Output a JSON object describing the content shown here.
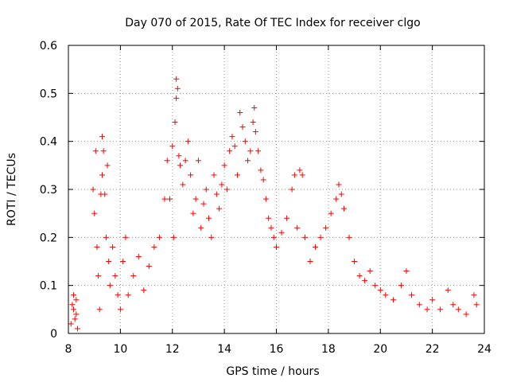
{
  "chart_data": {
    "type": "scatter",
    "title": "Day 070 of 2015, Rate Of TEC Index for receiver clgo",
    "xlabel": "GPS time / hours",
    "ylabel": "ROTI / TECUs",
    "xlim": [
      8,
      24
    ],
    "ylim": [
      0,
      0.6
    ],
    "xticks": [
      8,
      10,
      12,
      14,
      16,
      18,
      20,
      22,
      24
    ],
    "yticks": [
      0,
      0.1,
      0.2,
      0.3,
      0.4,
      0.5,
      0.6
    ],
    "xtick_labels": [
      "8",
      "10",
      "12",
      "14",
      "16",
      "18",
      "20",
      "22",
      "24"
    ],
    "ytick_labels": [
      "0",
      "0.1",
      "0.2",
      "0.3",
      "0.4",
      "0.5",
      "0.6"
    ],
    "grid": true,
    "marker": "+",
    "color": "#ff0000",
    "series": [
      {
        "name": "ROTI",
        "points": [
          [
            8.1,
            0.02
          ],
          [
            8.15,
            0.06
          ],
          [
            8.2,
            0.05
          ],
          [
            8.25,
            0.03
          ],
          [
            8.3,
            0.07
          ],
          [
            8.35,
            0.01
          ],
          [
            8.2,
            0.08
          ],
          [
            8.3,
            0.04
          ],
          [
            8.95,
            0.3
          ],
          [
            9.0,
            0.25
          ],
          [
            9.05,
            0.38
          ],
          [
            9.1,
            0.18
          ],
          [
            9.15,
            0.12
          ],
          [
            9.2,
            0.05
          ],
          [
            9.25,
            0.29
          ],
          [
            9.3,
            0.33
          ],
          [
            9.3,
            0.41
          ],
          [
            9.35,
            0.38
          ],
          [
            9.4,
            0.29
          ],
          [
            9.45,
            0.2
          ],
          [
            9.5,
            0.35
          ],
          [
            9.55,
            0.15
          ],
          [
            9.6,
            0.1
          ],
          [
            9.7,
            0.18
          ],
          [
            9.8,
            0.12
          ],
          [
            9.9,
            0.08
          ],
          [
            10.0,
            0.05
          ],
          [
            10.1,
            0.15
          ],
          [
            10.2,
            0.2
          ],
          [
            10.3,
            0.08
          ],
          [
            10.5,
            0.12
          ],
          [
            10.7,
            0.16
          ],
          [
            10.9,
            0.09
          ],
          [
            11.1,
            0.14
          ],
          [
            11.3,
            0.18
          ],
          [
            11.5,
            0.2
          ],
          [
            11.7,
            0.28
          ],
          [
            11.8,
            0.36
          ],
          [
            11.9,
            0.28
          ],
          [
            12.0,
            0.39
          ],
          [
            12.05,
            0.2
          ],
          [
            12.1,
            0.44
          ],
          [
            12.15,
            0.49
          ],
          [
            12.15,
            0.53
          ],
          [
            12.2,
            0.51
          ],
          [
            12.25,
            0.37
          ],
          [
            12.3,
            0.35
          ],
          [
            12.4,
            0.31
          ],
          [
            12.5,
            0.36
          ],
          [
            12.6,
            0.4
          ],
          [
            12.7,
            0.33
          ],
          [
            12.8,
            0.25
          ],
          [
            12.9,
            0.28
          ],
          [
            13.0,
            0.36
          ],
          [
            13.1,
            0.22
          ],
          [
            13.2,
            0.27
          ],
          [
            13.3,
            0.3
          ],
          [
            13.4,
            0.24
          ],
          [
            13.5,
            0.2
          ],
          [
            13.6,
            0.33
          ],
          [
            13.7,
            0.29
          ],
          [
            13.8,
            0.26
          ],
          [
            13.9,
            0.31
          ],
          [
            14.0,
            0.35
          ],
          [
            14.1,
            0.3
          ],
          [
            14.2,
            0.38
          ],
          [
            14.3,
            0.41
          ],
          [
            14.4,
            0.39
          ],
          [
            14.5,
            0.33
          ],
          [
            14.6,
            0.46
          ],
          [
            14.7,
            0.43
          ],
          [
            14.8,
            0.4
          ],
          [
            14.9,
            0.36
          ],
          [
            15.0,
            0.38
          ],
          [
            15.1,
            0.44
          ],
          [
            15.15,
            0.47
          ],
          [
            15.2,
            0.42
          ],
          [
            15.3,
            0.38
          ],
          [
            15.4,
            0.34
          ],
          [
            15.5,
            0.32
          ],
          [
            15.6,
            0.28
          ],
          [
            15.7,
            0.24
          ],
          [
            15.8,
            0.22
          ],
          [
            15.9,
            0.2
          ],
          [
            16.0,
            0.18
          ],
          [
            16.2,
            0.21
          ],
          [
            16.4,
            0.24
          ],
          [
            16.6,
            0.3
          ],
          [
            16.7,
            0.33
          ],
          [
            16.8,
            0.22
          ],
          [
            16.9,
            0.34
          ],
          [
            17.0,
            0.33
          ],
          [
            17.1,
            0.2
          ],
          [
            17.3,
            0.15
          ],
          [
            17.5,
            0.18
          ],
          [
            17.7,
            0.2
          ],
          [
            17.9,
            0.22
          ],
          [
            18.1,
            0.25
          ],
          [
            18.3,
            0.28
          ],
          [
            18.4,
            0.31
          ],
          [
            18.5,
            0.29
          ],
          [
            18.6,
            0.26
          ],
          [
            18.8,
            0.2
          ],
          [
            19.0,
            0.15
          ],
          [
            19.2,
            0.12
          ],
          [
            19.4,
            0.11
          ],
          [
            19.6,
            0.13
          ],
          [
            19.8,
            0.1
          ],
          [
            20.0,
            0.09
          ],
          [
            20.2,
            0.08
          ],
          [
            20.5,
            0.07
          ],
          [
            20.8,
            0.1
          ],
          [
            21.0,
            0.13
          ],
          [
            21.2,
            0.08
          ],
          [
            21.5,
            0.06
          ],
          [
            21.8,
            0.05
          ],
          [
            22.0,
            0.07
          ],
          [
            22.3,
            0.05
          ],
          [
            22.6,
            0.09
          ],
          [
            22.8,
            0.06
          ],
          [
            23.0,
            0.05
          ],
          [
            23.3,
            0.04
          ],
          [
            23.6,
            0.08
          ],
          [
            23.7,
            0.06
          ]
        ]
      }
    ]
  }
}
